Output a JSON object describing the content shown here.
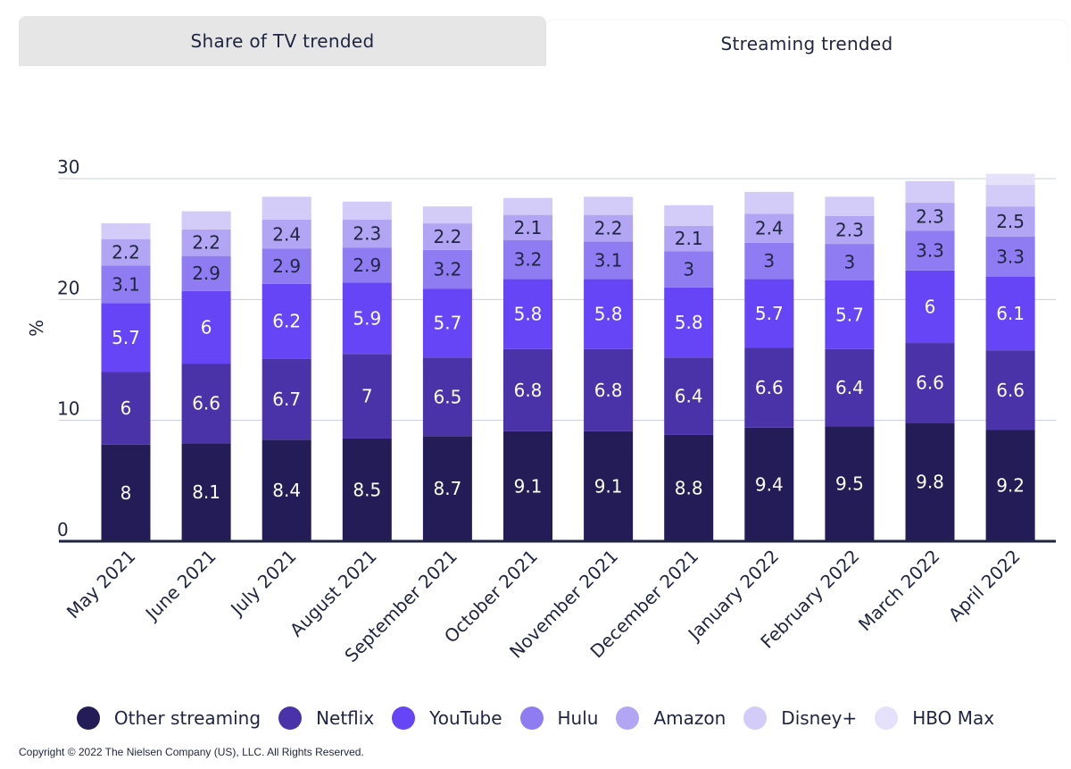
{
  "tabs": [
    {
      "label": "Share of TV trended",
      "active": false
    },
    {
      "label": "Streaming trended",
      "active": true
    }
  ],
  "legend": [
    {
      "label": "Other streaming",
      "color": "#241c57"
    },
    {
      "label": "Netflix",
      "color": "#4a32a8"
    },
    {
      "label": "YouTube",
      "color": "#6545f5"
    },
    {
      "label": "Hulu",
      "color": "#8f7cf2"
    },
    {
      "label": "Amazon",
      "color": "#b2a6f4"
    },
    {
      "label": "Disney+",
      "color": "#d3cbf8"
    },
    {
      "label": "HBO Max",
      "color": "#e6e1fb"
    }
  ],
  "chart_data": {
    "type": "bar",
    "stacked": true,
    "ylabel": "%",
    "ylim": [
      0,
      30
    ],
    "yticks": [
      0,
      10,
      20,
      30
    ],
    "categories": [
      "May 2021",
      "June 2021",
      "July 2021",
      "August 2021",
      "September 2021",
      "October 2021",
      "November 2021",
      "December 2021",
      "January 2022",
      "February 2022",
      "March 2022",
      "April 2022"
    ],
    "series": [
      {
        "name": "Other streaming",
        "color": "#241c57",
        "label_color": "#ffffff",
        "values": [
          8,
          8.1,
          8.4,
          8.5,
          8.7,
          9.1,
          9.1,
          8.8,
          9.4,
          9.5,
          9.8,
          9.2
        ]
      },
      {
        "name": "Netflix",
        "color": "#4a32a8",
        "label_color": "#ffffff",
        "values": [
          6,
          6.6,
          6.7,
          7,
          6.5,
          6.8,
          6.8,
          6.4,
          6.6,
          6.4,
          6.6,
          6.6
        ]
      },
      {
        "name": "YouTube",
        "color": "#6545f5",
        "label_color": "#ffffff",
        "values": [
          5.7,
          6,
          6.2,
          5.9,
          5.7,
          5.8,
          5.8,
          5.8,
          5.7,
          5.7,
          6,
          6.1
        ]
      },
      {
        "name": "Hulu",
        "color": "#8f7cf2",
        "label_color": "#1f2540",
        "values": [
          3.1,
          2.9,
          2.9,
          2.9,
          3.2,
          3.2,
          3.1,
          3,
          3,
          3,
          3.3,
          3.3
        ]
      },
      {
        "name": "Amazon",
        "color": "#b2a6f4",
        "label_color": "#1f2540",
        "values": [
          2.2,
          2.2,
          2.4,
          2.3,
          2.2,
          2.1,
          2.2,
          2.1,
          2.4,
          2.3,
          2.3,
          2.5
        ]
      },
      {
        "name": "Disney+",
        "color": "#d3cbf8",
        "label_color": "#1f2540",
        "values": [
          1.3,
          1.5,
          1.9,
          1.5,
          1.4,
          1.4,
          1.5,
          1.7,
          1.8,
          1.6,
          1.8,
          1.8
        ]
      },
      {
        "name": "HBO Max",
        "color": "#e6e1fb",
        "label_color": "#1f2540",
        "values": [
          0,
          0,
          0,
          0,
          0,
          0,
          0,
          0,
          0,
          0,
          0,
          0.9
        ]
      }
    ],
    "labeled_series": [
      "Other streaming",
      "Netflix",
      "YouTube",
      "Hulu",
      "Amazon"
    ]
  },
  "copyright": "Copyright © 2022 The Nielsen Company (US), LLC. All Rights Reserved."
}
